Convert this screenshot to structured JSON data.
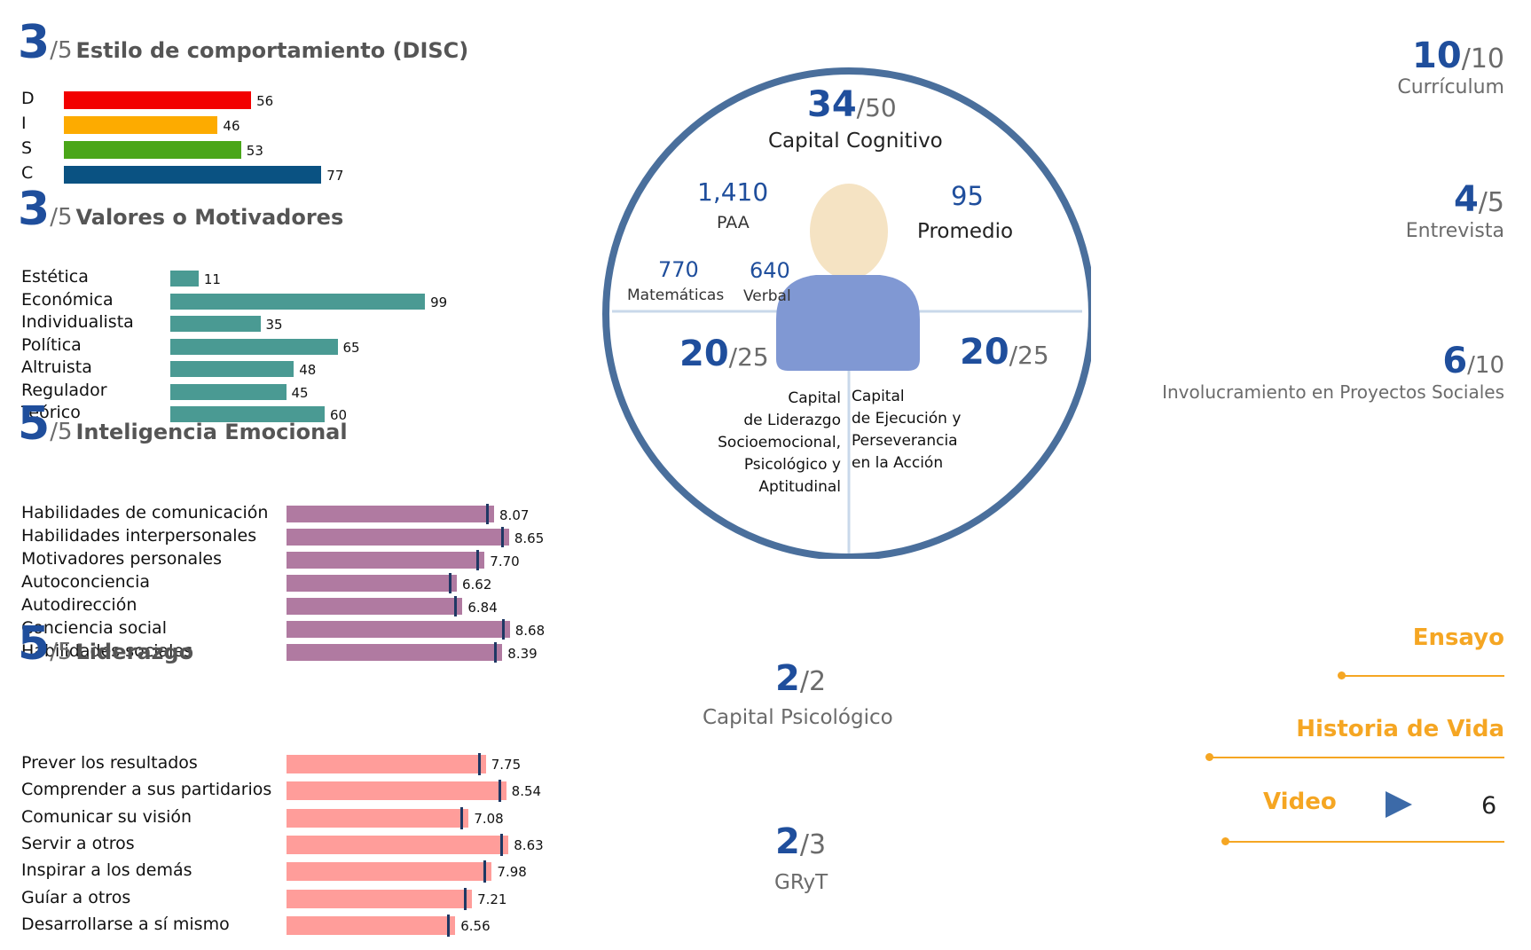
{
  "sections": {
    "disc": {
      "score": "3",
      "denom": "/5",
      "title": "Estilo de comportamiento (DISC)"
    },
    "valores": {
      "score": "3",
      "denom": "/5",
      "title": "Valores o Motivadores"
    },
    "ie": {
      "score": "5",
      "denom": "/5",
      "title": "Inteligencia Emocional"
    },
    "liderazgo": {
      "score": "5",
      "denom": "/5",
      "title": "Liderazgo"
    }
  },
  "center": {
    "cognitivo": {
      "score": "34",
      "denom": "/50",
      "label": "Capital Cognitivo"
    },
    "paa": {
      "value": "1,410",
      "label": "PAA"
    },
    "promedio": {
      "value": "95",
      "label": "Promedio"
    },
    "matematicas": {
      "value": "770",
      "label": "Matemáticas"
    },
    "verbal": {
      "value": "640",
      "label": "Verbal"
    },
    "left_score": {
      "score": "20",
      "denom": "/25"
    },
    "right_score": {
      "score": "20",
      "denom": "/25"
    },
    "left_label": [
      "Capital",
      "de Liderazgo",
      "Socioemocional,",
      "Psicológico y",
      "Aptitudinal"
    ],
    "right_label": [
      "Capital",
      "de Ejecución y",
      "Perseverancia",
      "en la Acción"
    ],
    "psicologico": {
      "score": "2",
      "denom": "/2",
      "label": "Capital Psicológico"
    },
    "gryt": {
      "score": "2",
      "denom": "/3",
      "label": "GRyT"
    }
  },
  "right": {
    "curriculum": {
      "score": "10",
      "denom": "/10",
      "label": "Currículum"
    },
    "entrevista": {
      "score": "4",
      "denom": "/5",
      "label": "Entrevista"
    },
    "proyectos": {
      "score": "6",
      "denom": "/10",
      "label": "Involucramiento en Proyectos Sociales"
    },
    "ensayo": "Ensayo",
    "historia": "Historia de Vida",
    "video": "Video",
    "video_count": "6"
  },
  "colors": {
    "accent": "#1f4e9c",
    "teal": "#4a9a93",
    "purple": "#b07aa1",
    "pink": "#ff9d9a",
    "orange": "#f5a623",
    "circle": "#4a6f9c",
    "person_head": "#f5e3c3",
    "person_body": "#8098d3"
  },
  "chart_data": [
    {
      "type": "bar",
      "title": "Estilo de comportamiento (DISC)",
      "categories": [
        "D",
        "I",
        "S",
        "C"
      ],
      "values": [
        56,
        46,
        53,
        77
      ],
      "colors": [
        "#f20000",
        "#fdab00",
        "#4aa619",
        "#0a5282"
      ],
      "xlim": [
        0,
        100
      ]
    },
    {
      "type": "bar",
      "title": "Valores o Motivadores",
      "categories": [
        "Estética",
        "Económica",
        "Individualista",
        "Política",
        "Altruista",
        "Regulador",
        "Teórico"
      ],
      "values": [
        11,
        99,
        35,
        65,
        48,
        45,
        60
      ],
      "xlim": [
        0,
        100
      ]
    },
    {
      "type": "bar",
      "title": "Inteligencia Emocional",
      "categories": [
        "Habilidades de comunicación",
        "Habilidades interpersonales",
        "Motivadores personales",
        "Autoconciencia",
        "Autodirección",
        "Conciencia social",
        "Habilidades sociales"
      ],
      "values": [
        8.07,
        8.65,
        7.7,
        6.62,
        6.84,
        8.68,
        8.39
      ],
      "labels": [
        "8.07",
        "8.65",
        "7.70",
        "6.62",
        "6.84",
        "8.68",
        "8.39"
      ],
      "xlim": [
        0,
        10
      ]
    },
    {
      "type": "bar",
      "title": "Liderazgo",
      "categories": [
        "Prever los resultados",
        "Comprender a sus partidarios",
        "Comunicar su visión",
        "Servir a otros",
        "Inspirar a los demás",
        "Guíar a otros",
        "Desarrollarse a sí mismo"
      ],
      "values": [
        7.75,
        8.54,
        7.08,
        8.63,
        7.98,
        7.21,
        6.56
      ],
      "labels": [
        "7.75",
        "8.54",
        "7.08",
        "8.63",
        "7.98",
        "7.21",
        "6.56"
      ],
      "xlim": [
        0,
        10
      ]
    }
  ]
}
